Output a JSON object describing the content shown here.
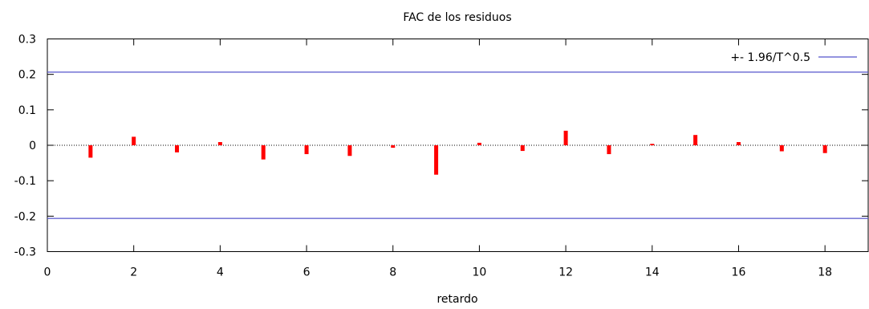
{
  "chart_data": {
    "type": "bar",
    "title": "FAC de los residuos",
    "xlabel": "retardo",
    "ylabel": "",
    "xlim": [
      0,
      19
    ],
    "ylim": [
      -0.3,
      0.3
    ],
    "x_ticks": [
      0,
      2,
      4,
      6,
      8,
      10,
      12,
      14,
      16,
      18
    ],
    "y_ticks": [
      -0.3,
      -0.2,
      -0.1,
      0,
      0.1,
      0.2,
      0.3
    ],
    "x_tick_labels": [
      "0",
      "2",
      "4",
      "6",
      "8",
      "10",
      "12",
      "14",
      "16",
      "18"
    ],
    "y_tick_labels": [
      "-0.3",
      "-0.2",
      "-0.1",
      "0",
      "0.1",
      "0.2",
      "0.3"
    ],
    "series": [
      {
        "x": [
          1,
          2,
          3,
          4,
          5,
          6,
          7,
          8,
          9,
          10,
          11,
          12,
          13,
          14,
          15,
          16,
          17,
          18
        ],
        "values": [
          -0.035,
          0.024,
          -0.02,
          0.009,
          -0.04,
          -0.025,
          -0.03,
          -0.007,
          -0.083,
          0.007,
          -0.016,
          0.041,
          -0.025,
          0.004,
          0.029,
          0.009,
          -0.017,
          -0.022
        ],
        "color": "#ff0000"
      }
    ],
    "bands": [
      {
        "name": "+- 1.96/T^0.5",
        "value": 0.2063,
        "color": "#5555cc"
      }
    ],
    "zero_line": true,
    "grid": false,
    "legend_position": "top-right"
  }
}
